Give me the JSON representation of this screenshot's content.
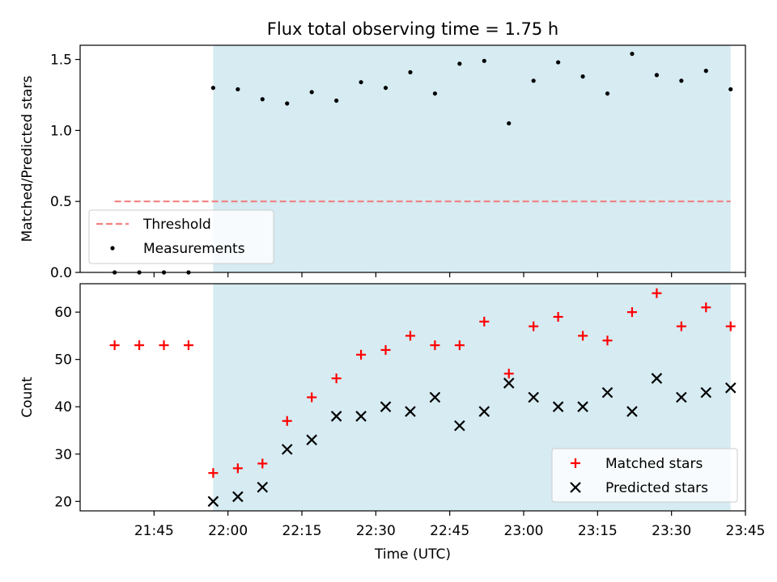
{
  "chart_data": {
    "title": "Flux total observing time = 1.75 h",
    "xlabel": "Time (UTC)",
    "x_tick_labels": [
      "21:45",
      "22:00",
      "22:15",
      "22:30",
      "22:45",
      "23:00",
      "23:15",
      "23:30",
      "23:45"
    ],
    "observing_window": [
      "21:57",
      "23:42"
    ],
    "panels": [
      {
        "type": "scatter",
        "ylabel": "Matched/Predicted stars",
        "ylim": [
          0,
          1.6
        ],
        "yticks": [
          0.0,
          0.5,
          1.0,
          1.5
        ],
        "ytick_labels": [
          "0.0",
          "0.5",
          "1.0",
          "1.5"
        ],
        "threshold": {
          "name": "Threshold",
          "value": 0.5,
          "x_range": [
            "21:37",
            "23:42"
          ],
          "color": "#f08080"
        },
        "series": [
          {
            "name": "Measurements",
            "color": "#000000",
            "x": [
              "21:37",
              "21:42",
              "21:47",
              "21:52",
              "21:57",
              "22:02",
              "22:07",
              "22:12",
              "22:17",
              "22:22",
              "22:27",
              "22:32",
              "22:37",
              "22:42",
              "22:47",
              "22:52",
              "22:57",
              "23:02",
              "23:07",
              "23:12",
              "23:17",
              "23:22",
              "23:27",
              "23:32",
              "23:37",
              "23:42"
            ],
            "y": [
              0,
              0,
              0,
              0,
              1.3,
              1.29,
              1.22,
              1.19,
              1.27,
              1.21,
              1.34,
              1.3,
              1.41,
              1.26,
              1.47,
              1.49,
              1.05,
              1.35,
              1.48,
              1.38,
              1.26,
              1.54,
              1.39,
              1.35,
              1.42,
              1.29
            ]
          }
        ],
        "legend": {
          "placement": "lower left",
          "entries": [
            "Threshold",
            "Measurements"
          ]
        }
      },
      {
        "type": "scatter",
        "ylabel": "Count",
        "ylim": [
          18,
          66
        ],
        "yticks": [
          20,
          30,
          40,
          50,
          60
        ],
        "ytick_labels": [
          "20",
          "30",
          "40",
          "50",
          "60"
        ],
        "series": [
          {
            "name": "Matched stars",
            "marker": "+",
            "color": "#ff0000",
            "x": [
              "21:37",
              "21:42",
              "21:47",
              "21:52",
              "21:57",
              "22:02",
              "22:07",
              "22:12",
              "22:17",
              "22:22",
              "22:27",
              "22:32",
              "22:37",
              "22:42",
              "22:47",
              "22:52",
              "22:57",
              "23:02",
              "23:07",
              "23:12",
              "23:17",
              "23:22",
              "23:27",
              "23:32",
              "23:37",
              "23:42"
            ],
            "y": [
              53,
              53,
              53,
              53,
              26,
              27,
              28,
              37,
              42,
              46,
              51,
              52,
              55,
              53,
              53,
              58,
              47,
              57,
              59,
              55,
              54,
              60,
              64,
              57,
              61,
              57
            ]
          },
          {
            "name": "Predicted stars",
            "marker": "x",
            "color": "#000000",
            "x": [
              "21:57",
              "22:02",
              "22:07",
              "22:12",
              "22:17",
              "22:22",
              "22:27",
              "22:32",
              "22:37",
              "22:42",
              "22:47",
              "22:52",
              "22:57",
              "23:02",
              "23:07",
              "23:12",
              "23:17",
              "23:22",
              "23:27",
              "23:32",
              "23:37",
              "23:42"
            ],
            "y": [
              20,
              21,
              23,
              31,
              33,
              38,
              38,
              40,
              39,
              42,
              36,
              39,
              45,
              42,
              40,
              40,
              43,
              39,
              46,
              42,
              43,
              44
            ]
          }
        ],
        "legend": {
          "placement": "lower right",
          "entries": [
            "Matched stars",
            "Predicted stars"
          ]
        }
      }
    ],
    "shade_color": "#add8e6"
  }
}
